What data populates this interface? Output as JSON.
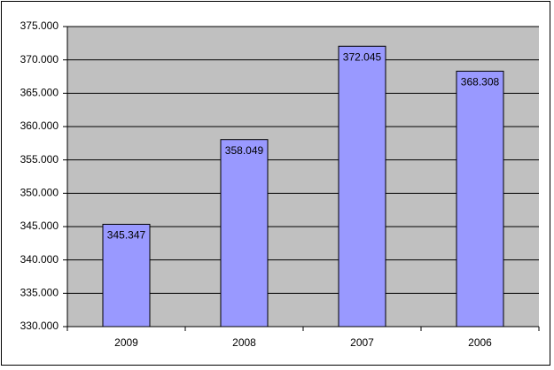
{
  "chart_data": {
    "type": "bar",
    "categories": [
      "2009",
      "2008",
      "2007",
      "2006"
    ],
    "values": [
      345347,
      358049,
      372045,
      368308
    ],
    "value_labels": [
      "345.347",
      "358.049",
      "372.045",
      "368.308"
    ],
    "color": "#9999ff",
    "ylim": [
      330000,
      375000
    ],
    "yticks": [
      {
        "value": 330000,
        "label": "330.000"
      },
      {
        "value": 335000,
        "label": "335.000"
      },
      {
        "value": 340000,
        "label": "340.000"
      },
      {
        "value": 345000,
        "label": "345.000"
      },
      {
        "value": 350000,
        "label": "350.000"
      },
      {
        "value": 355000,
        "label": "355.000"
      },
      {
        "value": 360000,
        "label": "360.000"
      },
      {
        "value": 365000,
        "label": "365.000"
      },
      {
        "value": 370000,
        "label": "370.000"
      },
      {
        "value": 375000,
        "label": "375.000"
      }
    ],
    "grid": true
  }
}
